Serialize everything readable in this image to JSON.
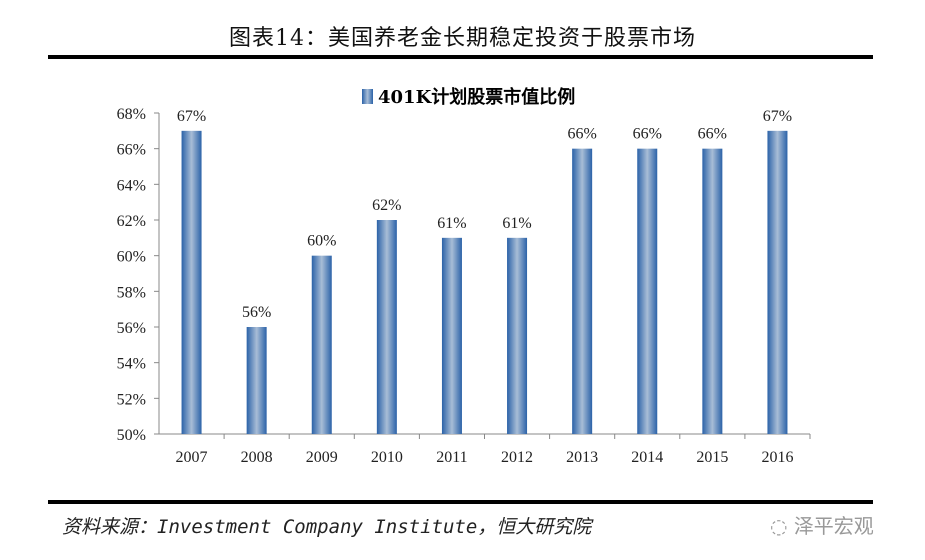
{
  "title": "图表14：美国养老金长期稳定投资于股票市场",
  "source": "资料来源：Investment Company Institute，恒大研究院",
  "watermark": "泽平宏观",
  "chart_data": {
    "type": "bar",
    "categories": [
      "2007",
      "2008",
      "2009",
      "2010",
      "2011",
      "2012",
      "2013",
      "2014",
      "2015",
      "2016"
    ],
    "series": [
      {
        "name": "401K计划股票市值比例",
        "values": [
          67,
          56,
          60,
          62,
          61,
          61,
          66,
          66,
          66,
          67
        ]
      }
    ],
    "data_labels": [
      "67%",
      "56%",
      "60%",
      "62%",
      "61%",
      "61%",
      "66%",
      "66%",
      "66%",
      "67%"
    ],
    "ylim": [
      50,
      68
    ],
    "yticks": [
      "50%",
      "52%",
      "54%",
      "56%",
      "58%",
      "60%",
      "62%",
      "64%",
      "66%",
      "68%"
    ],
    "legend": "top-center",
    "grid": false,
    "bar_color": "#2f6db5"
  }
}
